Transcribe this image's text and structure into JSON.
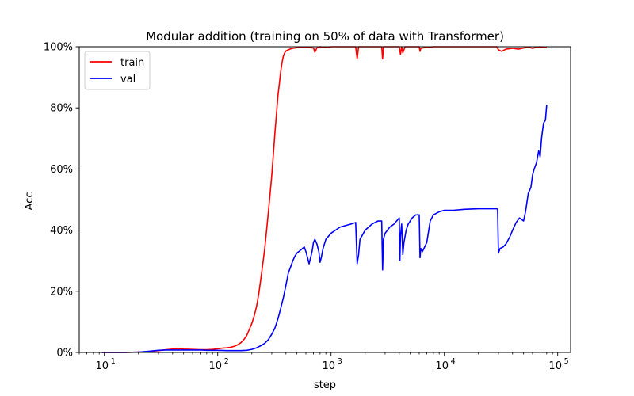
{
  "chart_data": {
    "type": "line",
    "title": "Modular addition (training on 50% of data with Transformer)",
    "xlabel": "step",
    "ylabel": "Acc",
    "xscale": "log",
    "xlim": [
      6,
      130000
    ],
    "ylim": [
      0,
      100
    ],
    "x_ticks": [
      {
        "value": 10,
        "base": "10",
        "exp": "1"
      },
      {
        "value": 100,
        "base": "10",
        "exp": "2"
      },
      {
        "value": 1000,
        "base": "10",
        "exp": "3"
      },
      {
        "value": 10000,
        "base": "10",
        "exp": "4"
      },
      {
        "value": 100000,
        "base": "10",
        "exp": "5"
      }
    ],
    "y_ticks": [
      {
        "value": 0,
        "label": "0%"
      },
      {
        "value": 20,
        "label": "20%"
      },
      {
        "value": 40,
        "label": "40%"
      },
      {
        "value": 60,
        "label": "60%"
      },
      {
        "value": 80,
        "label": "80%"
      },
      {
        "value": 100,
        "label": "100%"
      }
    ],
    "grid": false,
    "legend_position": "upper-left",
    "series": [
      {
        "name": "train",
        "color": "#ff0000",
        "x": [
          9.5,
          12,
          15,
          20,
          25,
          30,
          35,
          40,
          45,
          50,
          60,
          70,
          80,
          90,
          100,
          110,
          120,
          130,
          140,
          150,
          160,
          170,
          180,
          190,
          200,
          210,
          220,
          230,
          240,
          250,
          260,
          270,
          280,
          290,
          300,
          310,
          320,
          330,
          340,
          350,
          360,
          370,
          380,
          390,
          400,
          420,
          440,
          460,
          480,
          500,
          550,
          600,
          650,
          700,
          720,
          750,
          800,
          900,
          1000,
          1200,
          1500,
          1650,
          1700,
          1750,
          1800,
          2000,
          2500,
          2800,
          2850,
          2900,
          3000,
          3500,
          4000,
          4100,
          4200,
          4300,
          4500,
          5000,
          6000,
          6100,
          6200,
          7000,
          8000,
          10000,
          15000,
          20000,
          29000,
          30000,
          32000,
          35000,
          40000,
          45000,
          50000,
          55000,
          60000,
          65000,
          70000,
          75000,
          80000
        ],
        "y": [
          0,
          0,
          0,
          0.1,
          0.3,
          0.6,
          0.9,
          1.1,
          1.2,
          1.1,
          1.0,
          0.9,
          0.9,
          1.0,
          1.2,
          1.4,
          1.5,
          1.7,
          2.0,
          2.5,
          3.2,
          4.2,
          5.5,
          7.5,
          9.5,
          12,
          15,
          19,
          24,
          29,
          34,
          40,
          46,
          52,
          58,
          65,
          72,
          78,
          84,
          88,
          92,
          95,
          97,
          98,
          98.6,
          99,
          99.3,
          99.5,
          99.6,
          99.7,
          99.8,
          99.8,
          99.7,
          99.6,
          98.2,
          99.6,
          100,
          99.8,
          100,
          100,
          100,
          100,
          96,
          100,
          100,
          100,
          100,
          100,
          96,
          100,
          100,
          100,
          100,
          97.5,
          100,
          98,
          100,
          100,
          100,
          98.5,
          99.5,
          99.8,
          100,
          100,
          100,
          100,
          100,
          99,
          98.5,
          99.2,
          99.5,
          99.2,
          99.6,
          99.8,
          99.5,
          99.8,
          100,
          99.7,
          99.8
        ]
      },
      {
        "name": "val",
        "color": "#0000ff",
        "x": [
          9.5,
          12,
          15,
          20,
          25,
          30,
          35,
          40,
          45,
          50,
          60,
          70,
          80,
          90,
          100,
          120,
          140,
          160,
          180,
          200,
          220,
          240,
          260,
          280,
          300,
          320,
          340,
          360,
          380,
          400,
          420,
          440,
          460,
          480,
          500,
          520,
          540,
          560,
          580,
          600,
          620,
          640,
          660,
          680,
          700,
          720,
          750,
          780,
          800,
          820,
          850,
          900,
          1000,
          1200,
          1500,
          1650,
          1700,
          1750,
          1800,
          2000,
          2300,
          2600,
          2800,
          2850,
          2900,
          3000,
          3300,
          3600,
          4000,
          4050,
          4100,
          4200,
          4300,
          4400,
          4500,
          4600,
          4800,
          5200,
          5600,
          6000,
          6100,
          6200,
          6400,
          6600,
          7000,
          7500,
          8000,
          9000,
          10000,
          12000,
          15000,
          20000,
          25000,
          29000,
          29500,
          30000,
          31000,
          33000,
          35000,
          38000,
          40000,
          43000,
          46000,
          50000,
          52000,
          55000,
          58000,
          60000,
          62000,
          65000,
          68000,
          70000,
          72000,
          75000,
          78000,
          80000
        ],
        "y": [
          0,
          0,
          0,
          0.1,
          0.4,
          0.7,
          0.8,
          0.8,
          0.8,
          0.8,
          0.8,
          0.8,
          0.7,
          0.7,
          0.7,
          0.6,
          0.6,
          0.6,
          0.7,
          1.0,
          1.5,
          2.2,
          3.0,
          4.2,
          6,
          8,
          11,
          14.5,
          18,
          22,
          26,
          28,
          30,
          31.5,
          32.5,
          33,
          33.5,
          34,
          34.5,
          33,
          31,
          29,
          31,
          33,
          36,
          37,
          35.5,
          33,
          29.5,
          31,
          34,
          37,
          39,
          41,
          42,
          42.5,
          29,
          32,
          37,
          40,
          42,
          43,
          43,
          27,
          37,
          39,
          41,
          42,
          44,
          30,
          38,
          42,
          32,
          36,
          38,
          40,
          42,
          44,
          45,
          45,
          31,
          34,
          33,
          34,
          36,
          43,
          45,
          46,
          46.5,
          46.5,
          46.8,
          47,
          47,
          47,
          46.8,
          32.5,
          34,
          34.5,
          35.5,
          38,
          40,
          42.5,
          44,
          43,
          46,
          52,
          54,
          58,
          60,
          62,
          66,
          64,
          70,
          75,
          76,
          81
        ]
      }
    ]
  }
}
